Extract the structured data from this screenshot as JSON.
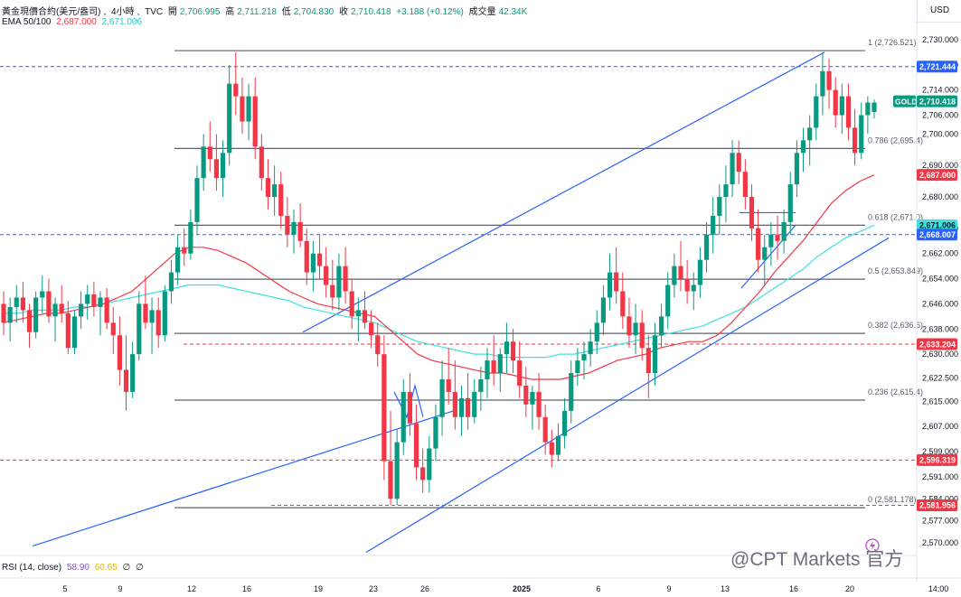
{
  "header": {
    "symbol": "黃金現價合約(美元/盎司)",
    "interval": "4小時",
    "source": "TVC",
    "open_label": "開",
    "open": "2,706.995",
    "high_label": "高",
    "high": "2,711.218",
    "low_label": "低",
    "low": "2,704.830",
    "close_label": "收",
    "close": "2,710.418",
    "change": "+3.188 (+0.12%)",
    "volume_label": "成交量",
    "volume": "42.34K",
    "ema_label": "EMA 50/100",
    "ema50": "2,687.000",
    "ema100": "2,671.006"
  },
  "currency_button": "USD",
  "watermark": "@CPT Markets 官方",
  "colors": {
    "up": "#089981",
    "down": "#f23645",
    "ema50": "#f23645",
    "ema100": "#40e0e0",
    "trend": "#2962ff",
    "fib": "#5d606b",
    "blue_dash": "#2962ff",
    "red_dash": "#f23645"
  },
  "chart_data": {
    "type": "candlestick",
    "price_axis": {
      "min": 2566,
      "max": 2734,
      "ticks": [
        "2,730.000",
        "2,722.000",
        "2,714.000",
        "2,706.000",
        "2,700.000",
        "2,690.000",
        "2,680.000",
        "2,670.000",
        "2,662.000",
        "2,654.000",
        "2,646.000",
        "2,638.000",
        "2,630.000",
        "2,622.500",
        "2,615.000",
        "2,607.000",
        "2,599.000",
        "2,591.000",
        "2,584.000",
        "2,577.000",
        "2,570.000"
      ]
    },
    "time_axis": {
      "labels": [
        "5",
        "9",
        "12",
        "16",
        "19",
        "23",
        "26",
        "2025",
        "6",
        "9",
        "13",
        "16",
        "20",
        "14:00"
      ]
    },
    "ohlc": [
      [
        2646,
        2650,
        2636,
        2640
      ],
      [
        2640,
        2648,
        2634,
        2645
      ],
      [
        2645,
        2652,
        2640,
        2648
      ],
      [
        2648,
        2653,
        2640,
        2644
      ],
      [
        2644,
        2646,
        2632,
        2637
      ],
      [
        2637,
        2650,
        2635,
        2648
      ],
      [
        2648,
        2655,
        2643,
        2650
      ],
      [
        2650,
        2654,
        2640,
        2642
      ],
      [
        2642,
        2648,
        2634,
        2646
      ],
      [
        2646,
        2652,
        2640,
        2643
      ],
      [
        2643,
        2647,
        2630,
        2632
      ],
      [
        2632,
        2644,
        2630,
        2642
      ],
      [
        2642,
        2650,
        2638,
        2646
      ],
      [
        2646,
        2652,
        2641,
        2649
      ],
      [
        2649,
        2653,
        2642,
        2645
      ],
      [
        2645,
        2650,
        2636,
        2648
      ],
      [
        2648,
        2651,
        2638,
        2640
      ],
      [
        2640,
        2645,
        2630,
        2636
      ],
      [
        2636,
        2642,
        2620,
        2625
      ],
      [
        2625,
        2636,
        2612,
        2618
      ],
      [
        2618,
        2634,
        2616,
        2630
      ],
      [
        2630,
        2650,
        2628,
        2646
      ],
      [
        2646,
        2655,
        2638,
        2640
      ],
      [
        2640,
        2648,
        2630,
        2644
      ],
      [
        2644,
        2648,
        2632,
        2636
      ],
      [
        2636,
        2652,
        2634,
        2650
      ],
      [
        2650,
        2660,
        2646,
        2656
      ],
      [
        2656,
        2668,
        2652,
        2664
      ],
      [
        2664,
        2670,
        2658,
        2662
      ],
      [
        2662,
        2676,
        2660,
        2672
      ],
      [
        2672,
        2690,
        2668,
        2686
      ],
      [
        2686,
        2700,
        2682,
        2696
      ],
      [
        2696,
        2704,
        2688,
        2692
      ],
      [
        2692,
        2700,
        2682,
        2686
      ],
      [
        2686,
        2698,
        2680,
        2694
      ],
      [
        2694,
        2722,
        2690,
        2716
      ],
      [
        2716,
        2726,
        2706,
        2712
      ],
      [
        2712,
        2718,
        2700,
        2704
      ],
      [
        2704,
        2716,
        2698,
        2712
      ],
      [
        2712,
        2718,
        2692,
        2696
      ],
      [
        2696,
        2700,
        2682,
        2686
      ],
      [
        2686,
        2692,
        2676,
        2680
      ],
      [
        2680,
        2690,
        2674,
        2684
      ],
      [
        2684,
        2688,
        2670,
        2674
      ],
      [
        2674,
        2680,
        2664,
        2668
      ],
      [
        2668,
        2676,
        2662,
        2672
      ],
      [
        2672,
        2678,
        2664,
        2666
      ],
      [
        2666,
        2670,
        2652,
        2656
      ],
      [
        2656,
        2666,
        2650,
        2662
      ],
      [
        2662,
        2668,
        2654,
        2658
      ],
      [
        2658,
        2664,
        2648,
        2652
      ],
      [
        2652,
        2660,
        2644,
        2648
      ],
      [
        2648,
        2662,
        2644,
        2658
      ],
      [
        2658,
        2664,
        2646,
        2650
      ],
      [
        2650,
        2654,
        2638,
        2642
      ],
      [
        2642,
        2648,
        2634,
        2644
      ],
      [
        2644,
        2650,
        2638,
        2640
      ],
      [
        2640,
        2644,
        2632,
        2636
      ],
      [
        2636,
        2640,
        2626,
        2630
      ],
      [
        2630,
        2636,
        2590,
        2596
      ],
      [
        2596,
        2612,
        2582,
        2584
      ],
      [
        2584,
        2606,
        2582,
        2602
      ],
      [
        2602,
        2622,
        2598,
        2618
      ],
      [
        2618,
        2624,
        2604,
        2608
      ],
      [
        2608,
        2614,
        2590,
        2594
      ],
      [
        2594,
        2600,
        2586,
        2590
      ],
      [
        2590,
        2604,
        2586,
        2600
      ],
      [
        2600,
        2614,
        2596,
        2610
      ],
      [
        2610,
        2628,
        2604,
        2622
      ],
      [
        2622,
        2632,
        2614,
        2618
      ],
      [
        2618,
        2628,
        2606,
        2610
      ],
      [
        2610,
        2620,
        2604,
        2616
      ],
      [
        2616,
        2624,
        2606,
        2610
      ],
      [
        2610,
        2622,
        2608,
        2618
      ],
      [
        2618,
        2626,
        2612,
        2622
      ],
      [
        2622,
        2632,
        2616,
        2628
      ],
      [
        2628,
        2636,
        2620,
        2624
      ],
      [
        2624,
        2632,
        2618,
        2630
      ],
      [
        2630,
        2640,
        2624,
        2634
      ],
      [
        2634,
        2638,
        2624,
        2628
      ],
      [
        2628,
        2634,
        2616,
        2620
      ],
      [
        2620,
        2626,
        2610,
        2614
      ],
      [
        2614,
        2620,
        2606,
        2618
      ],
      [
        2618,
        2624,
        2606,
        2610
      ],
      [
        2610,
        2614,
        2598,
        2602
      ],
      [
        2602,
        2606,
        2594,
        2598
      ],
      [
        2598,
        2608,
        2596,
        2604
      ],
      [
        2604,
        2616,
        2600,
        2612
      ],
      [
        2612,
        2628,
        2608,
        2624
      ],
      [
        2624,
        2632,
        2620,
        2628
      ],
      [
        2628,
        2634,
        2622,
        2630
      ],
      [
        2630,
        2638,
        2626,
        2634
      ],
      [
        2634,
        2644,
        2630,
        2640
      ],
      [
        2640,
        2652,
        2636,
        2648
      ],
      [
        2648,
        2662,
        2644,
        2656
      ],
      [
        2656,
        2664,
        2646,
        2650
      ],
      [
        2650,
        2656,
        2638,
        2642
      ],
      [
        2642,
        2648,
        2632,
        2636
      ],
      [
        2636,
        2646,
        2630,
        2640
      ],
      [
        2640,
        2644,
        2628,
        2632
      ],
      [
        2632,
        2636,
        2616,
        2624
      ],
      [
        2624,
        2640,
        2620,
        2636
      ],
      [
        2636,
        2646,
        2632,
        2642
      ],
      [
        2642,
        2656,
        2638,
        2652
      ],
      [
        2652,
        2662,
        2648,
        2658
      ],
      [
        2658,
        2666,
        2650,
        2654
      ],
      [
        2654,
        2660,
        2646,
        2650
      ],
      [
        2650,
        2656,
        2644,
        2652
      ],
      [
        2652,
        2664,
        2648,
        2660
      ],
      [
        2660,
        2672,
        2656,
        2668
      ],
      [
        2668,
        2680,
        2662,
        2674
      ],
      [
        2674,
        2684,
        2668,
        2680
      ],
      [
        2680,
        2690,
        2672,
        2684
      ],
      [
        2684,
        2698,
        2680,
        2694
      ],
      [
        2694,
        2698,
        2684,
        2688
      ],
      [
        2688,
        2692,
        2676,
        2680
      ],
      [
        2680,
        2684,
        2666,
        2670
      ],
      [
        2670,
        2676,
        2656,
        2660
      ],
      [
        2660,
        2668,
        2652,
        2664
      ],
      [
        2664,
        2672,
        2658,
        2668
      ],
      [
        2668,
        2674,
        2660,
        2666
      ],
      [
        2666,
        2676,
        2662,
        2672
      ],
      [
        2672,
        2688,
        2668,
        2684
      ],
      [
        2684,
        2698,
        2680,
        2694
      ],
      [
        2694,
        2702,
        2688,
        2698
      ],
      [
        2698,
        2706,
        2690,
        2702
      ],
      [
        2702,
        2716,
        2698,
        2712
      ],
      [
        2712,
        2726,
        2706,
        2720
      ],
      [
        2720,
        2724,
        2708,
        2714
      ],
      [
        2714,
        2718,
        2702,
        2706
      ],
      [
        2706,
        2716,
        2700,
        2712
      ],
      [
        2712,
        2716,
        2698,
        2702
      ],
      [
        2702,
        2708,
        2690,
        2694
      ],
      [
        2694,
        2710,
        2692,
        2706
      ],
      [
        2706,
        2712,
        2700,
        2710
      ],
      [
        2707,
        2711,
        2705,
        2710
      ]
    ],
    "ema50": [
      2640,
      2641,
      2642,
      2643,
      2643,
      2644,
      2645,
      2646,
      2648,
      2650,
      2654,
      2658,
      2662,
      2664,
      2664,
      2663,
      2661,
      2659,
      2656,
      2653,
      2650,
      2648,
      2646,
      2645,
      2644,
      2643,
      2642,
      2638,
      2634,
      2630,
      2628,
      2627,
      2626,
      2625,
      2624,
      2624,
      2623,
      2622,
      2622,
      2622,
      2623,
      2624,
      2626,
      2628,
      2629,
      2630,
      2632,
      2633,
      2634,
      2634,
      2636,
      2640,
      2645,
      2650,
      2656,
      2661,
      2666,
      2672,
      2678,
      2682,
      2685,
      2687
    ],
    "ema100": [
      2643,
      2643,
      2644,
      2644,
      2644,
      2645,
      2645,
      2646,
      2647,
      2648,
      2649,
      2650,
      2651,
      2652,
      2652,
      2652,
      2651,
      2650,
      2649,
      2648,
      2647,
      2645,
      2644,
      2643,
      2642,
      2641,
      2640,
      2638,
      2636,
      2634,
      2633,
      2632,
      2631,
      2630,
      2630,
      2629,
      2629,
      2629,
      2629,
      2630,
      2630,
      2631,
      2632,
      2633,
      2634,
      2635,
      2636,
      2637,
      2638,
      2639,
      2641,
      2643,
      2645,
      2648,
      2651,
      2654,
      2657,
      2661,
      2664,
      2667,
      2669,
      2671
    ],
    "fib_levels": [
      {
        "label": "1 (2,726.521)",
        "price": 2726.521
      },
      {
        "label": "0.786 (2,695.4)",
        "price": 2695.4
      },
      {
        "label": "0.618 (2,671.0)",
        "price": 2671.0
      },
      {
        "label": "0.5 (2,653.849)",
        "price": 2653.849
      },
      {
        "label": "0.382 (2,636.6)",
        "price": 2636.6
      },
      {
        "label": "0.236 (2,615.4)",
        "price": 2615.4
      },
      {
        "label": "0 (2,581.178)",
        "price": 2581.178
      }
    ],
    "price_tags": [
      {
        "label": "2,721.444",
        "price": 2721.444,
        "color": "#2962ff"
      },
      {
        "label": "2,710.418",
        "price": 2710.418,
        "color": "#089981",
        "prefix": "GOLD"
      },
      {
        "label": "2,687.000",
        "price": 2687.0,
        "color": "#f23645"
      },
      {
        "label": "2,671.006",
        "price": 2671.006,
        "color": "#40e0e0"
      },
      {
        "label": "2,668.007",
        "price": 2668.007,
        "color": "#2962ff"
      },
      {
        "label": "2,633.204",
        "price": 2633.204,
        "color": "#f23645"
      },
      {
        "label": "2,596.319",
        "price": 2596.319,
        "color": "#f23645"
      },
      {
        "label": "2,581.956",
        "price": 2581.956,
        "color": "#f23645"
      }
    ],
    "hlines": [
      {
        "price": 2721.444,
        "color": "#2962ff",
        "from": "start"
      },
      {
        "price": 2668.007,
        "color": "#2962ff",
        "from": "start"
      },
      {
        "price": 2633.204,
        "color": "#f23645",
        "from": "mid"
      },
      {
        "price": 2596.319,
        "color": "#f23645",
        "from": "start"
      },
      {
        "price": 2581.956,
        "color": "#f23645",
        "from": "late"
      }
    ],
    "rsi": {
      "label": "RSI (14, close)",
      "value1": "58.90",
      "value2": "60.65",
      "v3": "∅",
      "v4": "∅"
    }
  }
}
